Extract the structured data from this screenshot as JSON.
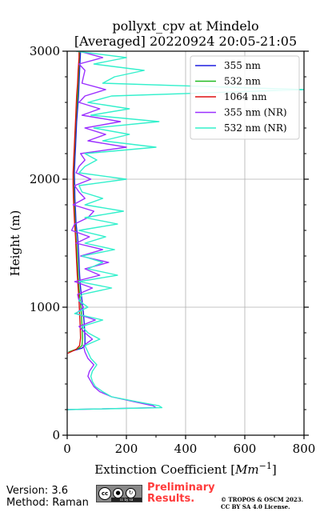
{
  "chart_data": {
    "type": "line",
    "title": "pollyxt_cpv at Mindelo",
    "subtitle": "[Averaged] 20220924 20:05-21:05",
    "xlabel": "Extinction Coefficient [Mm^-1]",
    "xlabel_prefix": "Extinction Coefficient [",
    "xlabel_unit": "Mm",
    "xlabel_exp": "−1",
    "xlabel_suffix": "]",
    "ylabel": "Height (m)",
    "xlim": [
      0,
      800
    ],
    "ylim": [
      0,
      3000
    ],
    "xticks": [
      0,
      200,
      400,
      600,
      800
    ],
    "yticks": [
      0,
      1000,
      2000,
      3000
    ],
    "grid": true,
    "legend_position": "top-right",
    "series": [
      {
        "name": "355 nm",
        "color": "#1f1fe0",
        "heights": [
          650,
          680,
          700,
          760,
          850,
          950,
          1050,
          1150,
          1250,
          1350,
          1450,
          1550,
          1650,
          1750,
          1850,
          1950,
          2050,
          2150,
          2250,
          2350,
          2450,
          2550,
          2650,
          2750,
          2850,
          2950,
          3000
        ],
        "values": [
          5,
          50,
          60,
          60,
          58,
          55,
          50,
          45,
          42,
          40,
          38,
          35,
          30,
          28,
          26,
          25,
          24,
          26,
          28,
          30,
          32,
          35,
          38,
          40,
          42,
          44,
          45
        ]
      },
      {
        "name": "532 nm",
        "color": "#22bb22",
        "heights": [
          650,
          680,
          700,
          760,
          850,
          950,
          1050,
          1150,
          1250,
          1350,
          1450,
          1550,
          1650,
          1750,
          1850,
          1950,
          2050,
          2150,
          2250,
          2350,
          2450,
          2550,
          2650,
          2750,
          2850,
          2950,
          3000
        ],
        "values": [
          5,
          40,
          50,
          52,
          50,
          48,
          44,
          40,
          37,
          35,
          33,
          30,
          27,
          25,
          23,
          22,
          21,
          23,
          25,
          27,
          29,
          32,
          35,
          37,
          39,
          41,
          42
        ]
      },
      {
        "name": "1064 nm",
        "color": "#dd1111",
        "heights": [
          640,
          670,
          700,
          760,
          850,
          950,
          1050,
          1150,
          1250,
          1350,
          1450,
          1550,
          1650,
          1750,
          1850,
          1950,
          2050,
          2150,
          2250,
          2350,
          2450,
          2550,
          2650,
          2750,
          2850,
          2950,
          3000
        ],
        "values": [
          2,
          30,
          42,
          45,
          44,
          42,
          40,
          37,
          34,
          32,
          30,
          28,
          25,
          23,
          21,
          20,
          20,
          22,
          24,
          26,
          28,
          30,
          32,
          35,
          37,
          40,
          40
        ]
      },
      {
        "name": "355 nm (NR)",
        "color": "#9b30ff",
        "heights": [
          200,
          215,
          230,
          260,
          300,
          340,
          380,
          420,
          460,
          500,
          550,
          600,
          650,
          700,
          750,
          800,
          850,
          900,
          950,
          1000,
          1050,
          1100,
          1150,
          1200,
          1250,
          1300,
          1350,
          1400,
          1450,
          1500,
          1550,
          1600,
          1650,
          1700,
          1750,
          1800,
          1850,
          1900,
          1950,
          2000,
          2050,
          2100,
          2150,
          2200,
          2250,
          2300,
          2350,
          2400,
          2450,
          2500,
          2550,
          2600,
          2650,
          2700,
          2750,
          2800,
          2850,
          2900,
          2950,
          3000
        ],
        "values": [
          0,
          300,
          290,
          230,
          150,
          110,
          90,
          80,
          70,
          75,
          90,
          70,
          60,
          55,
          85,
          60,
          40,
          95,
          30,
          55,
          40,
          35,
          85,
          25,
          110,
          60,
          140,
          45,
          120,
          30,
          75,
          15,
          25,
          70,
          90,
          20,
          60,
          40,
          25,
          80,
          30,
          40,
          60,
          45,
          200,
          70,
          130,
          60,
          180,
          50,
          110,
          40,
          60,
          130,
          50,
          55,
          60,
          40,
          120,
          40
        ]
      },
      {
        "name": "532 nm (NR)",
        "color": "#33f0cc",
        "heights": [
          200,
          215,
          230,
          260,
          300,
          340,
          380,
          420,
          460,
          500,
          550,
          600,
          650,
          700,
          750,
          800,
          850,
          900,
          950,
          1000,
          1050,
          1100,
          1150,
          1200,
          1250,
          1300,
          1350,
          1400,
          1450,
          1500,
          1550,
          1600,
          1650,
          1700,
          1750,
          1800,
          1850,
          1900,
          1950,
          2000,
          2050,
          2100,
          2150,
          2200,
          2250,
          2300,
          2350,
          2400,
          2450,
          2500,
          2550,
          2600,
          2650,
          2700,
          2750,
          2800,
          2850,
          2900,
          2950,
          3000
        ],
        "values": [
          0,
          320,
          310,
          240,
          150,
          120,
          95,
          85,
          80,
          85,
          100,
          80,
          70,
          60,
          110,
          70,
          50,
          120,
          25,
          70,
          40,
          50,
          150,
          40,
          170,
          70,
          120,
          50,
          160,
          60,
          130,
          40,
          170,
          60,
          190,
          60,
          120,
          50,
          40,
          200,
          40,
          60,
          100,
          60,
          300,
          120,
          210,
          90,
          310,
          80,
          210,
          70,
          150,
          800,
          120,
          160,
          260,
          90,
          200,
          30
        ]
      }
    ]
  },
  "footer": {
    "version": "Version: 3.6",
    "method": "Method: Raman",
    "preliminary_line1": "Preliminary",
    "preliminary_line2": "Results.",
    "copyright_line1": "© TROPOS & OSCM 2023.",
    "copyright_line2": "CC BY SA 4.0 License."
  },
  "license_badge": {
    "text": "cc by sa"
  }
}
